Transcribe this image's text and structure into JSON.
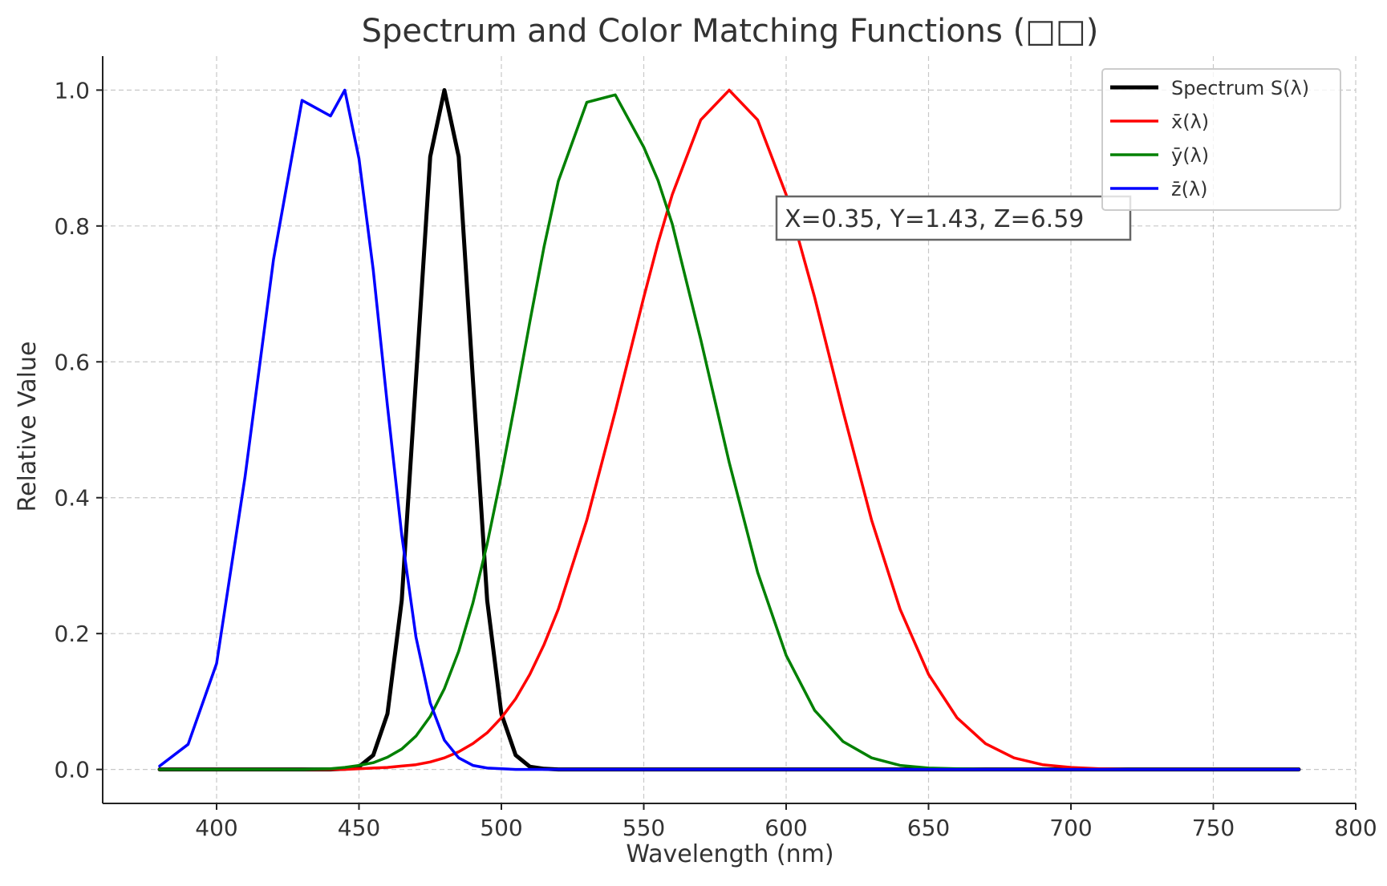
{
  "chart_data": {
    "type": "line",
    "title": "Spectrum and Color Matching Functions (□□)",
    "xlabel": "Wavelength (nm)",
    "ylabel": "Relative Value",
    "xlim": [
      360,
      800
    ],
    "ylim": [
      -0.05,
      1.05
    ],
    "xticks": [
      400,
      450,
      500,
      550,
      600,
      650,
      700,
      750,
      800
    ],
    "yticks": [
      0.0,
      0.2,
      0.4,
      0.6,
      0.8,
      1.0
    ],
    "xtick_labels": [
      "400",
      "450",
      "500",
      "550",
      "600",
      "650",
      "700",
      "750",
      "800"
    ],
    "ytick_labels": [
      "0.0",
      "0.2",
      "0.4",
      "0.6",
      "0.8",
      "1.0"
    ],
    "grid": true,
    "legend_position": "top-right",
    "annotation": "X=0.35, Y=1.43, Z=6.59",
    "x": [
      380,
      390,
      400,
      410,
      420,
      430,
      440,
      445,
      450,
      455,
      460,
      465,
      470,
      475,
      480,
      485,
      490,
      495,
      500,
      505,
      510,
      515,
      520,
      530,
      540,
      550,
      555,
      560,
      570,
      580,
      590,
      600,
      610,
      620,
      630,
      640,
      650,
      660,
      670,
      680,
      690,
      700,
      710,
      720,
      730,
      740,
      750,
      760,
      770,
      780
    ],
    "series": [
      {
        "name": "Spectrum S(λ)",
        "color": "#000000",
        "values": [
          0,
          0,
          0,
          0,
          0,
          0,
          0,
          0.001,
          0.004,
          0.021,
          0.082,
          0.249,
          0.574,
          0.902,
          1.0,
          0.902,
          0.574,
          0.249,
          0.082,
          0.021,
          0.004,
          0.001,
          0,
          0,
          0,
          0,
          0,
          0,
          0,
          0,
          0,
          0,
          0,
          0,
          0,
          0,
          0,
          0,
          0,
          0,
          0,
          0,
          0,
          0,
          0,
          0,
          0,
          0,
          0,
          0
        ]
      },
      {
        "name": "x̄(λ)",
        "color": "#ff0000",
        "values": [
          0,
          0,
          0,
          0,
          0,
          0,
          0,
          0,
          0.001,
          0.002,
          0.003,
          0.005,
          0.007,
          0.011,
          0.017,
          0.026,
          0.038,
          0.054,
          0.076,
          0.104,
          0.14,
          0.184,
          0.236,
          0.367,
          0.527,
          0.695,
          0.775,
          0.846,
          0.956,
          1.0,
          0.956,
          0.846,
          0.695,
          0.527,
          0.367,
          0.236,
          0.14,
          0.076,
          0.038,
          0.017,
          0.007,
          0.003,
          0.001,
          0,
          0,
          0,
          0,
          0,
          0,
          0
        ]
      },
      {
        "name": "ȳ(λ)",
        "color": "#008000",
        "values": [
          0,
          0,
          0,
          0,
          0,
          0,
          0.001,
          0.003,
          0.006,
          0.01,
          0.018,
          0.03,
          0.049,
          0.078,
          0.119,
          0.174,
          0.245,
          0.332,
          0.433,
          0.544,
          0.659,
          0.77,
          0.866,
          0.982,
          0.993,
          0.916,
          0.867,
          0.803,
          0.633,
          0.452,
          0.29,
          0.168,
          0.087,
          0.041,
          0.017,
          0.006,
          0.002,
          0.001,
          0,
          0,
          0,
          0,
          0,
          0,
          0,
          0,
          0,
          0,
          0,
          0
        ]
      },
      {
        "name": "z̄(λ)",
        "color": "#0000ff",
        "values": [
          0.005,
          0.037,
          0.156,
          0.431,
          0.751,
          0.985,
          0.962,
          1.0,
          0.899,
          0.735,
          0.535,
          0.345,
          0.195,
          0.098,
          0.043,
          0.017,
          0.006,
          0.002,
          0.001,
          0,
          0,
          0,
          0,
          0,
          0,
          0,
          0,
          0,
          0,
          0,
          0,
          0,
          0,
          0,
          0,
          0,
          0,
          0,
          0,
          0,
          0,
          0,
          0,
          0,
          0,
          0,
          0,
          0,
          0,
          0
        ]
      }
    ]
  }
}
